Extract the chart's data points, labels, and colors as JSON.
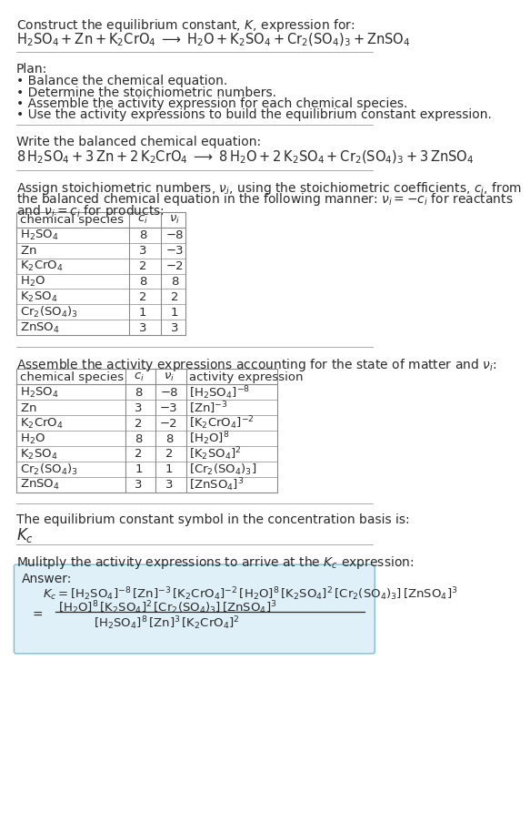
{
  "bg_color": "#ffffff",
  "text_color": "#2a2a2a",
  "separator_color": "#aaaaaa",
  "table_border_color": "#888888",
  "answer_box_color": "#dff0f8",
  "answer_box_border": "#7bbdd4",
  "font_size": 10.0,
  "title_text": "Construct the equilibrium constant, $K$, expression for:",
  "reaction_unbalanced": "$\\mathrm{H_2SO_4 + Zn + K_2CrO_4 \\;\\longrightarrow\\; H_2O + K_2SO_4 + Cr_2(SO_4)_3 + ZnSO_4}$",
  "plan_header": "Plan:",
  "plan_items": [
    "• Balance the chemical equation.",
    "• Determine the stoichiometric numbers.",
    "• Assemble the activity expression for each chemical species.",
    "• Use the activity expressions to build the equilibrium constant expression."
  ],
  "balanced_header": "Write the balanced chemical equation:",
  "balanced_eq": "$\\mathrm{8\\,H_2SO_4 + 3\\,Zn + 2\\,K_2CrO_4 \\;\\longrightarrow\\; 8\\,H_2O + 2\\,K_2SO_4 + Cr_2(SO_4)_3 + 3\\,ZnSO_4}$",
  "stoich_header1": "Assign stoichiometric numbers, $\\nu_i$, using the stoichiometric coefficients, $c_i$, from",
  "stoich_header2": "the balanced chemical equation in the following manner: $\\nu_i = -c_i$ for reactants",
  "stoich_header3": "and $\\nu_i = c_i$ for products:",
  "table1_cols": [
    "chemical species",
    "$c_i$",
    "$\\nu_i$"
  ],
  "table1_data": [
    [
      "$\\mathrm{H_2SO_4}$",
      "8",
      "−8"
    ],
    [
      "$\\mathrm{Zn}$",
      "3",
      "−3"
    ],
    [
      "$\\mathrm{K_2CrO_4}$",
      "2",
      "−2"
    ],
    [
      "$\\mathrm{H_2O}$",
      "8",
      "8"
    ],
    [
      "$\\mathrm{K_2SO_4}$",
      "2",
      "2"
    ],
    [
      "$\\mathrm{Cr_2(SO_4)_3}$",
      "1",
      "1"
    ],
    [
      "$\\mathrm{ZnSO_4}$",
      "3",
      "3"
    ]
  ],
  "activity_header": "Assemble the activity expressions accounting for the state of matter and $\\nu_i$:",
  "table2_cols": [
    "chemical species",
    "$c_i$",
    "$\\nu_i$",
    "activity expression"
  ],
  "table2_data": [
    [
      "$\\mathrm{H_2SO_4}$",
      "8",
      "−8",
      "$[\\mathrm{H_2SO_4}]^{-8}$"
    ],
    [
      "$\\mathrm{Zn}$",
      "3",
      "−3",
      "$[\\mathrm{Zn}]^{-3}$"
    ],
    [
      "$\\mathrm{K_2CrO_4}$",
      "2",
      "−2",
      "$[\\mathrm{K_2CrO_4}]^{-2}$"
    ],
    [
      "$\\mathrm{H_2O}$",
      "8",
      "8",
      "$[\\mathrm{H_2O}]^8$"
    ],
    [
      "$\\mathrm{K_2SO_4}$",
      "2",
      "2",
      "$[\\mathrm{K_2SO_4}]^2$"
    ],
    [
      "$\\mathrm{Cr_2(SO_4)_3}$",
      "1",
      "1",
      "$[\\mathrm{Cr_2(SO_4)_3}]$"
    ],
    [
      "$\\mathrm{ZnSO_4}$",
      "3",
      "3",
      "$[\\mathrm{ZnSO_4}]^3$"
    ]
  ],
  "kc_header": "The equilibrium constant symbol in the concentration basis is:",
  "kc_symbol": "$K_c$",
  "multiply_header": "Mulitply the activity expressions to arrive at the $K_c$ expression:",
  "answer_label": "Answer:",
  "kc_line1": "$K_c = [\\mathrm{H_2SO_4}]^{-8}\\,[\\mathrm{Zn}]^{-3}\\,[\\mathrm{K_2CrO_4}]^{-2}\\,[\\mathrm{H_2O}]^8\\,[\\mathrm{K_2SO_4}]^2\\,[\\mathrm{Cr_2(SO_4)_3}]\\,[\\mathrm{ZnSO_4}]^3$",
  "kc_numerator": "$[\\mathrm{H_2O}]^8\\,[\\mathrm{K_2SO_4}]^2\\,[\\mathrm{Cr_2(SO_4)_3}]\\,[\\mathrm{ZnSO_4}]^3$",
  "kc_denominator": "$[\\mathrm{H_2SO_4}]^8\\,[\\mathrm{Zn}]^3\\,[\\mathrm{K_2CrO_4}]^2$"
}
